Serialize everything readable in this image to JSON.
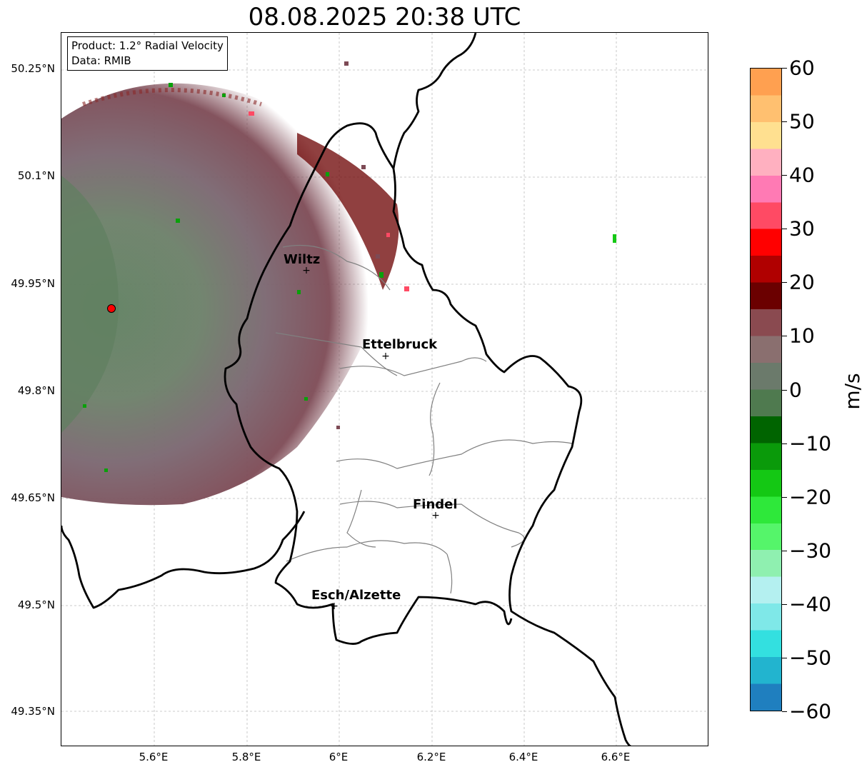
{
  "title": "08.08.2025 20:38 UTC",
  "info": {
    "product": "Product: 1.2° Radial Velocity",
    "data": "Data: RMIB"
  },
  "lat_ticks": [
    "50.25°N",
    "50.1°N",
    "49.95°N",
    "49.8°N",
    "49.65°N",
    "49.5°N",
    "49.35°N"
  ],
  "lon_ticks": [
    "5.6°E",
    "5.8°E",
    "6°E",
    "6.2°E",
    "6.4°E",
    "6.6°E"
  ],
  "cities": [
    {
      "name": "Wiltz"
    },
    {
      "name": "Ettelbruck"
    },
    {
      "name": "Findel"
    },
    {
      "name": "Esch/Alzette"
    }
  ],
  "radar_site": {
    "marker_color": "#ff0000"
  },
  "colorbar": {
    "unit": "m/s",
    "min": -60,
    "max": 60,
    "ticks": [
      "60",
      "50",
      "40",
      "30",
      "20",
      "10",
      "0",
      "−10",
      "−20",
      "−30",
      "−40",
      "−50",
      "−60"
    ],
    "colors": [
      "#1f7fbf",
      "#22b4cf",
      "#33e0e0",
      "#7fe8e8",
      "#b4f0f0",
      "#8ff0b0",
      "#55f56a",
      "#2ee83a",
      "#14c814",
      "#0a9a0a",
      "#006400",
      "#4f7a4f",
      "#6b7a6b",
      "#8a6f6f",
      "#8a4a50",
      "#6b0000",
      "#b00000",
      "#ff0000",
      "#ff4a64",
      "#ff7ab4",
      "#ffb0c0",
      "#ffe090",
      "#ffc070",
      "#ffa050"
    ]
  }
}
